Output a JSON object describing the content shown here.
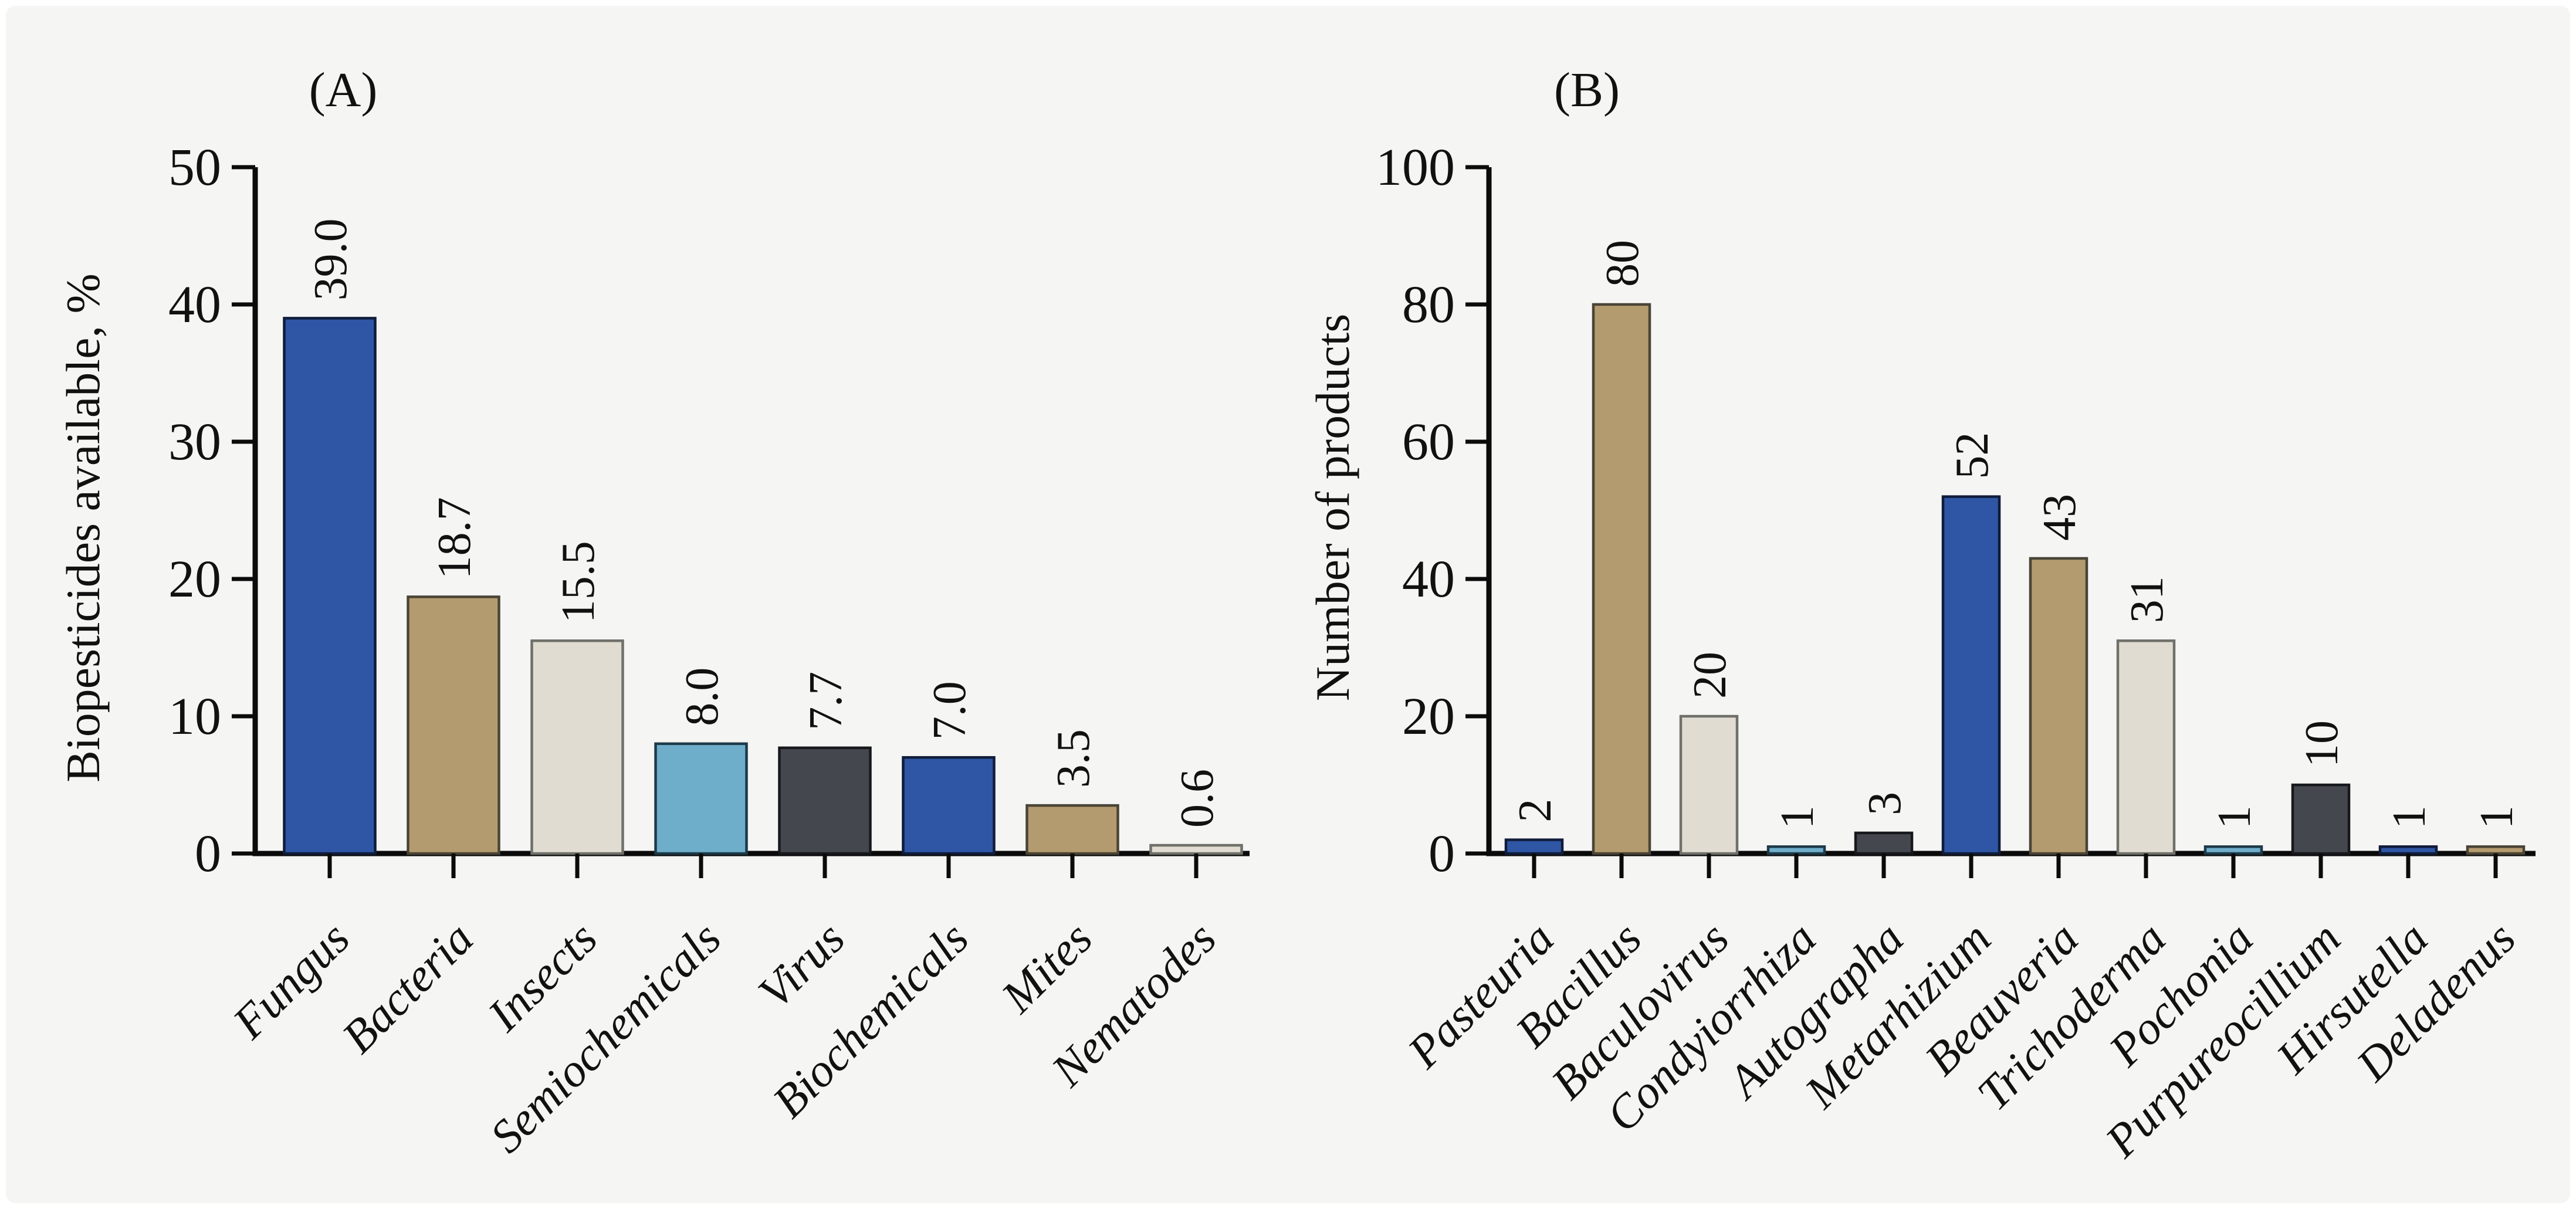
{
  "figure": {
    "background_color": "#f5f5f4",
    "axis_color": "#0b0b0b",
    "text_color": "#111111"
  },
  "palette": {
    "blue": {
      "fill": "#2E56A4",
      "stroke": "#101C3A"
    },
    "tan": {
      "fill": "#B49B6F",
      "stroke": "#4A4436"
    },
    "beige": {
      "fill": "#E0DCD1",
      "stroke": "#70706A"
    },
    "lightblue": {
      "fill": "#6FAECB",
      "stroke": "#1D3A49"
    },
    "darkgray": {
      "fill": "#44474E",
      "stroke": "#17181C"
    }
  },
  "chart_data": [
    {
      "type": "bar",
      "panel_label": "(A)",
      "ylabel": "Biopesticides available, %",
      "xlabel": "",
      "categories": [
        "Fungus",
        "Bacteria",
        "Insects",
        "Semiochemicals",
        "Virus",
        "Biochemicals",
        "Mites",
        "Nematodes"
      ],
      "values": [
        39.0,
        18.7,
        15.5,
        8.0,
        7.7,
        7.0,
        3.5,
        0.6
      ],
      "value_labels": [
        "39.0",
        "18.7",
        "15.5",
        "8.0",
        "7.7",
        "7.0",
        "3.5",
        "0.6"
      ],
      "color_sequence": [
        "blue",
        "tan",
        "beige",
        "lightblue",
        "darkgray",
        "blue",
        "tan",
        "beige"
      ],
      "ylim": [
        0,
        50
      ],
      "yticks": [
        0,
        10,
        20,
        30,
        40,
        50
      ],
      "grid": false,
      "legend": "none",
      "bar_value_labels_rotated_90": true,
      "category_labels_rotated_45_italic": true
    },
    {
      "type": "bar",
      "panel_label": "(B)",
      "ylabel": "Number of products",
      "xlabel": "",
      "categories": [
        "Pasteuria",
        "Bacillus",
        "Baculovirus",
        "Condyiorrhiza",
        "Autographa",
        "Metarhizium",
        "Beauveria",
        "Trichoderma",
        "Pochonia",
        "Purpureocillium",
        "Hirsutella",
        "Deladenus"
      ],
      "values": [
        2,
        80,
        20,
        1,
        3,
        52,
        43,
        31,
        1,
        10,
        1,
        1
      ],
      "value_labels": [
        "2",
        "80",
        "20",
        "1",
        "3",
        "52",
        "43",
        "31",
        "1",
        "10",
        "1",
        "1"
      ],
      "color_sequence": [
        "blue",
        "tan",
        "beige",
        "lightblue",
        "darkgray",
        "blue",
        "tan",
        "beige",
        "lightblue",
        "darkgray",
        "blue",
        "tan"
      ],
      "ylim": [
        0,
        100
      ],
      "yticks": [
        0,
        20,
        40,
        60,
        80,
        100
      ],
      "grid": false,
      "legend": "none",
      "bar_value_labels_rotated_90": true,
      "category_labels_rotated_45_italic": true
    }
  ]
}
